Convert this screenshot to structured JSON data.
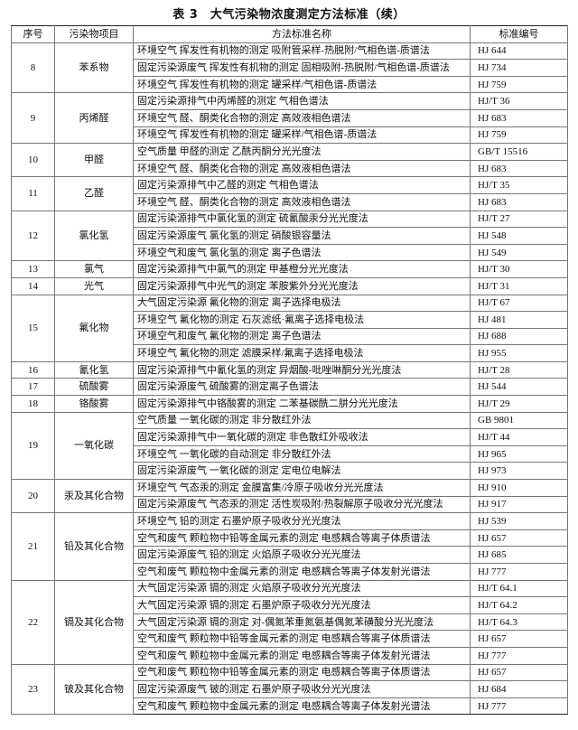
{
  "header": {
    "title": "表 3　大气污染物浓度测定方法标准（续）"
  },
  "table": {
    "columns": [
      "序号",
      "污染物项目",
      "方法标准名称",
      "标准编号"
    ],
    "groups": [
      {
        "no": "8",
        "pollutant": "苯系物",
        "methods": [
          {
            "name": "环境空气 挥发性有机物的测定 吸附管采样-热脱附/气相色谱-质谱法",
            "code": "HJ 644"
          },
          {
            "name": "固定污染源废气 挥发性有机物的测定 固相吸附-热脱附/气相色谱-质谱法",
            "code": "HJ 734"
          },
          {
            "name": "环境空气 挥发性有机物的测定 罐采样/气相色谱-质谱法",
            "code": "HJ 759"
          }
        ]
      },
      {
        "no": "9",
        "pollutant": "丙烯醛",
        "methods": [
          {
            "name": "固定污染源排气中丙烯醛的测定 气相色谱法",
            "code": "HJ/T 36"
          },
          {
            "name": "环境空气 醛、酮类化合物的测定 高效液相色谱法",
            "code": "HJ 683"
          },
          {
            "name": "环境空气 挥发性有机物的测定 罐采样/气相色谱-质谱法",
            "code": "HJ 759"
          }
        ]
      },
      {
        "no": "10",
        "pollutant": "甲醛",
        "methods": [
          {
            "name": "空气质量 甲醛的测定 乙酰丙酮分光光度法",
            "code": "GB/T 15516"
          },
          {
            "name": "环境空气 醛、酮类化合物的测定 高效液相色谱法",
            "code": "HJ 683"
          }
        ]
      },
      {
        "no": "11",
        "pollutant": "乙醛",
        "methods": [
          {
            "name": "固定污染源排气中乙醛的测定 气相色谱法",
            "code": "HJ/T 35"
          },
          {
            "name": "环境空气 醛、酮类化合物的测定 高效液相色谱法",
            "code": "HJ 683"
          }
        ]
      },
      {
        "no": "12",
        "pollutant": "氯化氢",
        "methods": [
          {
            "name": "固定污染源排气中氯化氢的测定 硫氰酸汞分光光度法",
            "code": "HJ/T 27"
          },
          {
            "name": "固定污染源废气 氯化氢的测定 硝酸银容量法",
            "code": "HJ 548"
          },
          {
            "name": "环境空气和废气 氯化氢的测定 离子色谱法",
            "code": "HJ 549"
          }
        ]
      },
      {
        "no": "13",
        "pollutant": "氯气",
        "methods": [
          {
            "name": "固定污染源排气中氯气的测定 甲基橙分光光度法",
            "code": "HJ/T 30"
          }
        ]
      },
      {
        "no": "14",
        "pollutant": "光气",
        "methods": [
          {
            "name": "固定污染源排气中光气的测定 苯胺紫外分光光度法",
            "code": "HJ/T 31"
          }
        ]
      },
      {
        "no": "15",
        "pollutant": "氟化物",
        "methods": [
          {
            "name": "大气固定污染源 氟化物的测定 离子选择电极法",
            "code": "HJ/T 67"
          },
          {
            "name": "环境空气 氟化物的测定 石灰滤纸·氟离子选择电极法",
            "code": "HJ 481"
          },
          {
            "name": "环境空气和废气 氟化物的测定 离子色谱法",
            "code": "HJ 688"
          },
          {
            "name": "环境空气 氟化物的测定 滤膜采样/氟离子选择电极法",
            "code": "HJ 955"
          }
        ]
      },
      {
        "no": "16",
        "pollutant": "氰化氢",
        "methods": [
          {
            "name": "固定污染源排气中氰化氢的测定 异烟酸-吡唑啉酮分光光度法",
            "code": "HJ/T 28"
          }
        ]
      },
      {
        "no": "17",
        "pollutant": "硫酸雾",
        "methods": [
          {
            "name": "固定污染源废气 硫酸雾的测定离子色谱法",
            "code": "HJ 544"
          }
        ]
      },
      {
        "no": "18",
        "pollutant": "铬酸雾",
        "methods": [
          {
            "name": "固定污染源排气中铬酸雾的测定 二苯基碳酰二肼分光光度法",
            "code": "HJ/T 29"
          }
        ]
      },
      {
        "no": "19",
        "pollutant": "一氧化碳",
        "methods": [
          {
            "name": "空气质量 一氧化碳的测定 非分散红外法",
            "code": "GB 9801"
          },
          {
            "name": "固定污染源排气中一氧化碳的测定 非色散红外吸收法",
            "code": "HJ/T 44"
          },
          {
            "name": "环境空气 一氧化碳的自动测定 非分散红外法",
            "code": "HJ 965"
          },
          {
            "name": "固定污染源废气 一氧化碳的测定 定电位电解法",
            "code": "HJ 973"
          }
        ]
      },
      {
        "no": "20",
        "pollutant": "汞及其化合物",
        "methods": [
          {
            "name": "环境空气 气态汞的测定 金膜富集/冷原子吸收分光光度法",
            "code": "HJ 910"
          },
          {
            "name": "固定污染源废气 气态汞的测定 活性炭吸附/热裂解原子吸收分光光度法",
            "code": "HJ 917"
          }
        ]
      },
      {
        "no": "21",
        "pollutant": "铅及其化合物",
        "methods": [
          {
            "name": "环境空气 铅的测定 石墨炉原子吸收分光光度法",
            "code": "HJ 539"
          },
          {
            "name": "空气和废气 颗粒物中铅等金属元素的测定 电感耦合等离子体质谱法",
            "code": "HJ 657"
          },
          {
            "name": "固定污染源废气 铅的测定 火焰原子吸收分光光度法",
            "code": "HJ 685"
          },
          {
            "name": "空气和废气 颗粒物中金属元素的测定 电感耦合等离子体发射光谱法",
            "code": "HJ 777"
          }
        ]
      },
      {
        "no": "22",
        "pollutant": "镉及其化合物",
        "methods": [
          {
            "name": "大气固定污染源 镉的测定 火焰原子吸收分光光度法",
            "code": "HJ/T 64.1"
          },
          {
            "name": "大气固定污染源 镉的测定 石墨炉原子吸收分光光度法",
            "code": "HJ/T 64.2"
          },
          {
            "name": "大气固定污染源 镉的测定 对-偶氮苯重氮氨基偶氮苯磺酸分光光度法",
            "code": "HJ/T 64.3"
          },
          {
            "name": "空气和废气 颗粒物中铅等金属元素的测定 电感耦合等离子体质谱法",
            "code": "HJ 657"
          },
          {
            "name": "空气和废气 颗粒物中金属元素的测定 电感耦合等离子体发射光谱法",
            "code": "HJ 777"
          }
        ]
      },
      {
        "no": "23",
        "pollutant": "铍及其化合物",
        "methods": [
          {
            "name": "空气和废气 颗粒物中铅等金属元素的测定 电感耦合等离子体质谱法",
            "code": "HJ 657"
          },
          {
            "name": "固定污染源废气 铍的测定 石墨炉原子吸收分光光度法",
            "code": "HJ 684"
          },
          {
            "name": "空气和废气 颗粒物中金属元素的测定 电感耦合等离子体发射光谱法",
            "code": "HJ 777"
          }
        ]
      }
    ]
  }
}
